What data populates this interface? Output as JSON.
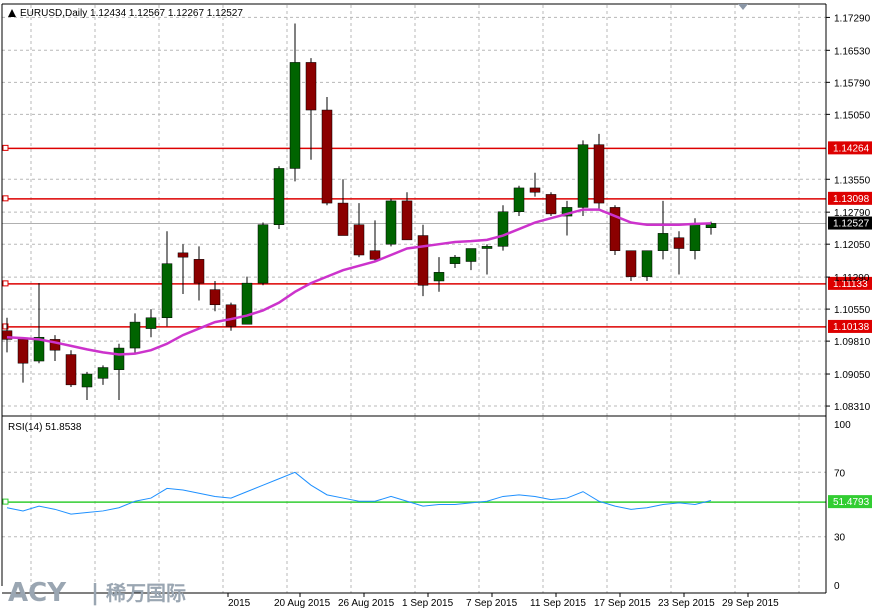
{
  "header": {
    "symbol_info": "EURUSD,Daily  1.12434 1.12567 1.12267 1.12527",
    "rsi_info": "RSI(14) 51.8538"
  },
  "logo": {
    "brand": "ACY",
    "separator": "|",
    "cn_text": "稀万国际"
  },
  "colors": {
    "bull": "#006400",
    "bear": "#8b0000",
    "ma": "#cc33cc",
    "level_line": "#dd0000",
    "rsi_line": "#1e90ff",
    "rsi_level": "#32cd32",
    "grid": "#b8b8b8"
  },
  "chart_data": [
    {
      "type": "candlestick",
      "title": "EURUSD,Daily",
      "x_tick_labels": [
        "2015",
        "20 Aug 2015",
        "26 Aug 2015",
        "1 Sep 2015",
        "7 Sep 2015",
        "11 Sep 2015",
        "17 Sep 2015",
        "23 Sep 2015",
        "29 Sep 2015"
      ],
      "y_tick_labels": [
        "1.17290",
        "1.16530",
        "1.15790",
        "1.15050",
        "1.13550",
        "1.12790",
        "1.12050",
        "1.11290",
        "1.10550",
        "1.09810",
        "1.09050",
        "1.08310"
      ],
      "y_ticks": [
        1.1729,
        1.1653,
        1.1579,
        1.1505,
        1.1355,
        1.1279,
        1.1205,
        1.1129,
        1.1055,
        1.0981,
        1.0905,
        1.0831
      ],
      "ylim": [
        1.0808,
        1.176
      ],
      "grid": true,
      "current_price": {
        "label": "1.12527",
        "value": 1.12527
      },
      "levels": [
        {
          "label": "1.14264",
          "value": 1.14264
        },
        {
          "label": "1.13098",
          "value": 1.13098
        },
        {
          "label": "1.11133",
          "value": 1.11133
        },
        {
          "label": "1.10138",
          "value": 1.10138
        }
      ],
      "candles": [
        {
          "o": 1.1005,
          "h": 1.1035,
          "l": 1.0955,
          "c": 1.0985
        },
        {
          "o": 1.0985,
          "h": 1.099,
          "l": 1.0885,
          "c": 1.093
        },
        {
          "o": 1.0935,
          "h": 1.1115,
          "l": 1.093,
          "c": 1.099
        },
        {
          "o": 1.0985,
          "h": 1.0995,
          "l": 1.0935,
          "c": 1.096
        },
        {
          "o": 1.095,
          "h": 1.096,
          "l": 1.0875,
          "c": 1.088
        },
        {
          "o": 1.0875,
          "h": 1.091,
          "l": 1.0845,
          "c": 1.0905
        },
        {
          "o": 1.0895,
          "h": 1.0925,
          "l": 1.088,
          "c": 1.092
        },
        {
          "o": 1.0915,
          "h": 1.0975,
          "l": 1.0845,
          "c": 1.0965
        },
        {
          "o": 1.0965,
          "h": 1.1045,
          "l": 1.095,
          "c": 1.1025
        },
        {
          "o": 1.101,
          "h": 1.1055,
          "l": 1.099,
          "c": 1.1035
        },
        {
          "o": 1.1035,
          "h": 1.1235,
          "l": 1.1015,
          "c": 1.116
        },
        {
          "o": 1.1185,
          "h": 1.1205,
          "l": 1.109,
          "c": 1.1175
        },
        {
          "o": 1.117,
          "h": 1.12,
          "l": 1.1075,
          "c": 1.1115
        },
        {
          "o": 1.11,
          "h": 1.112,
          "l": 1.105,
          "c": 1.1065
        },
        {
          "o": 1.1065,
          "h": 1.107,
          "l": 1.1005,
          "c": 1.1015
        },
        {
          "o": 1.102,
          "h": 1.113,
          "l": 1.102,
          "c": 1.1115
        },
        {
          "o": 1.1115,
          "h": 1.1255,
          "l": 1.111,
          "c": 1.125
        },
        {
          "o": 1.125,
          "h": 1.1385,
          "l": 1.124,
          "c": 1.138
        },
        {
          "o": 1.138,
          "h": 1.1715,
          "l": 1.135,
          "c": 1.1625
        },
        {
          "o": 1.1625,
          "h": 1.1635,
          "l": 1.14,
          "c": 1.1515
        },
        {
          "o": 1.1515,
          "h": 1.1545,
          "l": 1.1295,
          "c": 1.13
        },
        {
          "o": 1.13,
          "h": 1.1355,
          "l": 1.1225,
          "c": 1.1225
        },
        {
          "o": 1.125,
          "h": 1.13,
          "l": 1.1175,
          "c": 1.118
        },
        {
          "o": 1.119,
          "h": 1.126,
          "l": 1.1165,
          "c": 1.117
        },
        {
          "o": 1.1205,
          "h": 1.131,
          "l": 1.12,
          "c": 1.1305
        },
        {
          "o": 1.1305,
          "h": 1.1325,
          "l": 1.1215,
          "c": 1.1215
        },
        {
          "o": 1.1225,
          "h": 1.125,
          "l": 1.1085,
          "c": 1.111
        },
        {
          "o": 1.112,
          "h": 1.1175,
          "l": 1.1095,
          "c": 1.114
        },
        {
          "o": 1.116,
          "h": 1.118,
          "l": 1.115,
          "c": 1.1175
        },
        {
          "o": 1.1165,
          "h": 1.1195,
          "l": 1.1145,
          "c": 1.1195
        },
        {
          "o": 1.1195,
          "h": 1.1205,
          "l": 1.1135,
          "c": 1.12
        },
        {
          "o": 1.12,
          "h": 1.1295,
          "l": 1.119,
          "c": 1.128
        },
        {
          "o": 1.128,
          "h": 1.134,
          "l": 1.127,
          "c": 1.1335
        },
        {
          "o": 1.1335,
          "h": 1.137,
          "l": 1.1315,
          "c": 1.1325
        },
        {
          "o": 1.132,
          "h": 1.1325,
          "l": 1.127,
          "c": 1.1275
        },
        {
          "o": 1.127,
          "h": 1.1305,
          "l": 1.1225,
          "c": 1.129
        },
        {
          "o": 1.129,
          "h": 1.1445,
          "l": 1.127,
          "c": 1.1435
        },
        {
          "o": 1.1435,
          "h": 1.146,
          "l": 1.1285,
          "c": 1.13
        },
        {
          "o": 1.129,
          "h": 1.1295,
          "l": 1.118,
          "c": 1.119
        },
        {
          "o": 1.119,
          "h": 1.119,
          "l": 1.112,
          "c": 1.113
        },
        {
          "o": 1.113,
          "h": 1.119,
          "l": 1.112,
          "c": 1.119
        },
        {
          "o": 1.119,
          "h": 1.1305,
          "l": 1.117,
          "c": 1.123
        },
        {
          "o": 1.122,
          "h": 1.1235,
          "l": 1.1135,
          "c": 1.1195
        },
        {
          "o": 1.119,
          "h": 1.1265,
          "l": 1.117,
          "c": 1.125
        },
        {
          "o": 1.1243,
          "h": 1.1257,
          "l": 1.1227,
          "c": 1.1253
        }
      ],
      "ma": [
        1.099,
        1.0988,
        1.0985,
        1.0978,
        1.097,
        1.0962,
        1.0955,
        1.095,
        1.0952,
        1.096,
        1.0975,
        1.0995,
        1.101,
        1.1025,
        1.1032,
        1.104,
        1.1052,
        1.107,
        1.1095,
        1.1115,
        1.113,
        1.1145,
        1.1155,
        1.1165,
        1.118,
        1.1195,
        1.12,
        1.1205,
        1.121,
        1.1212,
        1.1215,
        1.1225,
        1.124,
        1.1255,
        1.1265,
        1.1275,
        1.1285,
        1.1285,
        1.127,
        1.1255,
        1.125,
        1.125,
        1.125,
        1.1252,
        1.1253
      ]
    },
    {
      "type": "line",
      "title": "RSI(14)",
      "y_tick_labels": [
        "100",
        "70",
        "30",
        "0"
      ],
      "y_ticks": [
        100,
        70,
        30,
        0
      ],
      "ylim": [
        0,
        100
      ],
      "level": {
        "label": "51.4793",
        "value": 51.4793
      },
      "values": [
        48,
        46,
        49,
        47,
        44,
        45,
        46,
        48,
        52,
        54,
        60,
        59,
        57,
        55,
        54,
        58,
        62,
        66,
        70,
        62,
        56,
        54,
        52,
        52,
        55,
        52,
        49,
        50,
        50,
        51,
        52,
        55,
        56,
        55,
        53,
        54,
        58,
        52,
        49,
        47,
        48,
        50,
        51,
        50,
        52.5
      ]
    }
  ]
}
